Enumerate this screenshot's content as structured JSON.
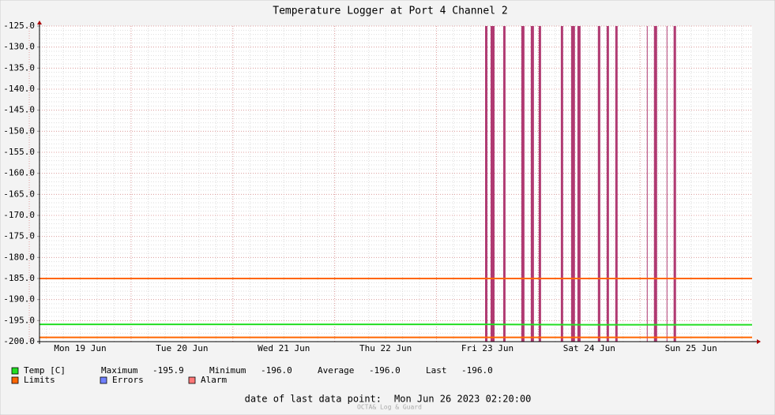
{
  "chart_data": {
    "type": "line",
    "title": "Temperature Logger at Port 4 Channel 2",
    "categories": [
      "Mon 19 Jun",
      "Tue 20 Jun",
      "Wed 21 Jun",
      "Thu 22 Jun",
      "Fri 23 Jun",
      "Sat 24 Jun",
      "Sun 25 Jun"
    ],
    "xlim": [
      -0.4,
      6.6
    ],
    "ylim": [
      -200,
      -125
    ],
    "yticks": [
      {
        "value": -125,
        "label": "-125.0"
      },
      {
        "value": -130,
        "label": "-130.0"
      },
      {
        "value": -135,
        "label": "-135.0"
      },
      {
        "value": -140,
        "label": "-140.0"
      },
      {
        "value": -145,
        "label": "-145.0"
      },
      {
        "value": -150,
        "label": "-150.0"
      },
      {
        "value": -155,
        "label": "-155.0"
      },
      {
        "value": -160,
        "label": "-160.0"
      },
      {
        "value": -165,
        "label": "-165.0"
      },
      {
        "value": -170,
        "label": "-170.0"
      },
      {
        "value": -175,
        "label": "-175.0"
      },
      {
        "value": -180,
        "label": "-180.0"
      },
      {
        "value": -185,
        "label": "-185.0"
      },
      {
        "value": -190,
        "label": "-190.0"
      },
      {
        "value": -195,
        "label": "-195.0"
      },
      {
        "value": -200,
        "label": "-200.0"
      }
    ],
    "grid": true,
    "series": [
      {
        "name": "Temp [C]",
        "color": "#22dd22",
        "x": [
          -0.4,
          0,
          1,
          2,
          3,
          4,
          5,
          6,
          6.6
        ],
        "values": [
          -195.9,
          -195.9,
          -195.9,
          -195.9,
          -195.9,
          -195.9,
          -196,
          -196,
          -196
        ]
      }
    ],
    "limits": {
      "name": "Limits",
      "color": "#ff6600",
      "values": [
        -185,
        -199
      ]
    },
    "errors": {
      "name": "Errors",
      "color": "#7080ff"
    },
    "alarm": {
      "name": "Alarm",
      "color": "#ff7777",
      "bar_color": "#b03a72",
      "spans": [
        [
          3.977,
          4.0
        ],
        [
          4.031,
          4.07
        ],
        [
          4.155,
          4.178
        ],
        [
          4.333,
          4.364
        ],
        [
          4.426,
          4.457
        ],
        [
          4.504,
          4.527
        ],
        [
          4.721,
          4.744
        ],
        [
          4.822,
          4.86
        ],
        [
          4.884,
          4.915
        ],
        [
          5.085,
          5.109
        ],
        [
          5.171,
          5.194
        ],
        [
          5.256,
          5.279
        ],
        [
          5.566,
          5.574
        ],
        [
          5.636,
          5.667
        ],
        [
          5.76,
          5.767
        ],
        [
          5.829,
          5.853
        ]
      ]
    },
    "stats": {
      "names": [
        "Maximum",
        "Minimum",
        "Average",
        "Last"
      ],
      "values": [
        -195.9,
        -196,
        -196,
        -196
      ],
      "value_labels": [
        "-195.9",
        "-196.0",
        "-196.0",
        "-196.0"
      ]
    },
    "footer": {
      "label": "date of last data point:",
      "date": "Mon Jun 26 2023 02:20:00"
    },
    "watermark": "OCTA& Log & Guard"
  }
}
